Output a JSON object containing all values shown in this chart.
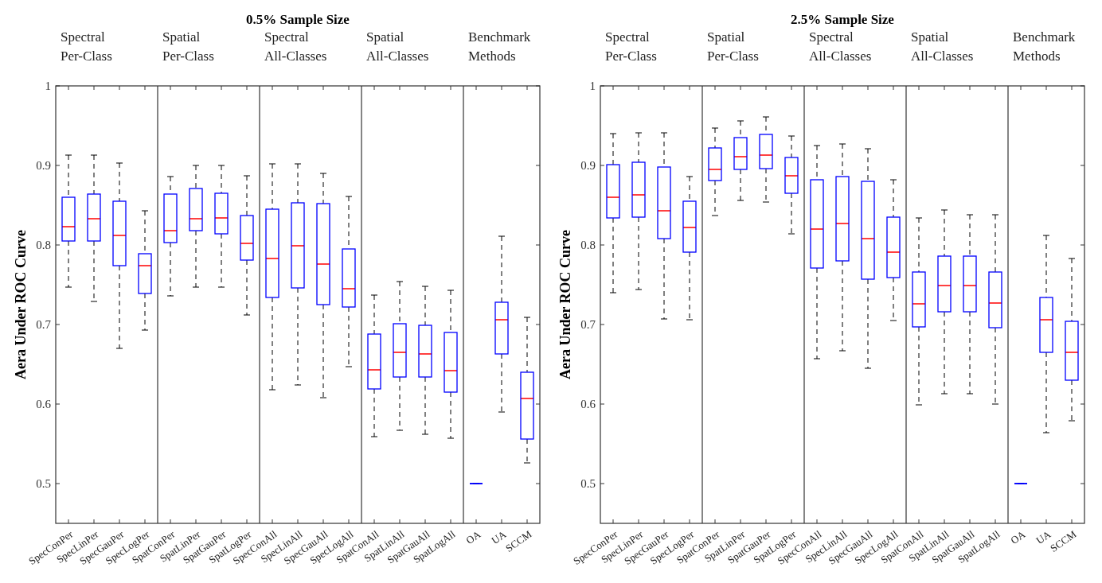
{
  "chart_data": [
    {
      "type": "box",
      "title": "0.5% Sample Size",
      "ylabel": "Aera Under ROC Curve",
      "categories": [
        "SpecConPer",
        "SpecLinPer",
        "SpecGauPer",
        "SpecLogPer",
        "SpatConPer",
        "SpatLinPer",
        "SpatGauPer",
        "SpatLogPer",
        "SpecConAll",
        "SpecLinAll",
        "SpecGauAll",
        "SpecLogAll",
        "SpatConAll",
        "SpatLinAll",
        "SpatGauAll",
        "SpatLogAll",
        "OA",
        "UA",
        "SCCM"
      ],
      "ylim": [
        0.45,
        1
      ],
      "yticks": [
        0.5,
        0.6,
        0.7,
        0.8,
        0.9,
        1
      ],
      "annotations": [
        "Spectral\nPer-Class",
        "Spatial\nPer-Class",
        "Spectral\nAll-Classes",
        "Spatial\nAll-Classes",
        "Benchmark\nMethods"
      ],
      "series": [
        {
          "color": "#0000ff",
          "boxes": [
            {
              "low": 0.747,
              "q1": 0.805,
              "median": 0.823,
              "q3": 0.86,
              "high": 0.913
            },
            {
              "low": 0.729,
              "q1": 0.805,
              "median": 0.833,
              "q3": 0.864,
              "high": 0.913
            },
            {
              "low": 0.67,
              "q1": 0.774,
              "median": 0.812,
              "q3": 0.855,
              "high": 0.903
            },
            {
              "low": 0.693,
              "q1": 0.739,
              "median": 0.774,
              "q3": 0.789,
              "high": 0.843
            },
            {
              "low": 0.736,
              "q1": 0.803,
              "median": 0.818,
              "q3": 0.864,
              "high": 0.886
            },
            {
              "low": 0.747,
              "q1": 0.818,
              "median": 0.833,
              "q3": 0.871,
              "high": 0.9
            },
            {
              "low": 0.747,
              "q1": 0.814,
              "median": 0.834,
              "q3": 0.865,
              "high": 0.9
            },
            {
              "low": 0.712,
              "q1": 0.781,
              "median": 0.802,
              "q3": 0.837,
              "high": 0.887
            },
            {
              "low": 0.618,
              "q1": 0.734,
              "median": 0.783,
              "q3": 0.845,
              "high": 0.902
            },
            {
              "low": 0.624,
              "q1": 0.746,
              "median": 0.799,
              "q3": 0.853,
              "high": 0.902
            },
            {
              "low": 0.608,
              "q1": 0.725,
              "median": 0.776,
              "q3": 0.852,
              "high": 0.89
            },
            {
              "low": 0.647,
              "q1": 0.722,
              "median": 0.745,
              "q3": 0.795,
              "high": 0.861
            },
            {
              "low": 0.559,
              "q1": 0.619,
              "median": 0.643,
              "q3": 0.688,
              "high": 0.737
            },
            {
              "low": 0.567,
              "q1": 0.634,
              "median": 0.665,
              "q3": 0.701,
              "high": 0.754
            },
            {
              "low": 0.562,
              "q1": 0.634,
              "median": 0.663,
              "q3": 0.699,
              "high": 0.748
            },
            {
              "low": 0.557,
              "q1": 0.615,
              "median": 0.642,
              "q3": 0.69,
              "high": 0.743
            },
            {
              "low": 0.5,
              "q1": 0.5,
              "median": 0.5,
              "q3": 0.5,
              "high": 0.5
            },
            {
              "low": 0.59,
              "q1": 0.663,
              "median": 0.706,
              "q3": 0.728,
              "high": 0.811
            },
            {
              "low": 0.526,
              "q1": 0.556,
              "median": 0.607,
              "q3": 0.64,
              "high": 0.709
            }
          ]
        }
      ]
    },
    {
      "type": "box",
      "title": "2.5% Sample Size",
      "ylabel": "Aera Under ROC Curve",
      "categories": [
        "SpecConPer",
        "SpecLinPer",
        "SpecGauPer",
        "SpecLogPer",
        "SpatConPer",
        "SpatLinPer",
        "SpatGauPer",
        "SpatLogPer",
        "SpecConAll",
        "SpecLinAll",
        "SpecGauAll",
        "SpecLogAll",
        "SpatConAll",
        "SpatLinAll",
        "SpatGauAll",
        "SpatLogAll",
        "OA",
        "UA",
        "SCCM"
      ],
      "ylim": [
        0.45,
        1
      ],
      "yticks": [
        0.5,
        0.6,
        0.7,
        0.8,
        0.9,
        1
      ],
      "annotations": [
        "Spectral\nPer-Class",
        "Spatial\nPer-Class",
        "Spectral\nAll-Classes",
        "Spatial\nAll-Classes",
        "Benchmark\nMethods"
      ],
      "series": [
        {
          "color": "#0000ff",
          "boxes": [
            {
              "low": 0.74,
              "q1": 0.834,
              "median": 0.86,
              "q3": 0.901,
              "high": 0.94
            },
            {
              "low": 0.744,
              "q1": 0.835,
              "median": 0.863,
              "q3": 0.904,
              "high": 0.941
            },
            {
              "low": 0.707,
              "q1": 0.808,
              "median": 0.843,
              "q3": 0.898,
              "high": 0.941
            },
            {
              "low": 0.706,
              "q1": 0.791,
              "median": 0.822,
              "q3": 0.855,
              "high": 0.886
            },
            {
              "low": 0.837,
              "q1": 0.881,
              "median": 0.895,
              "q3": 0.922,
              "high": 0.947
            },
            {
              "low": 0.856,
              "q1": 0.895,
              "median": 0.911,
              "q3": 0.935,
              "high": 0.956
            },
            {
              "low": 0.854,
              "q1": 0.896,
              "median": 0.913,
              "q3": 0.939,
              "high": 0.961
            },
            {
              "low": 0.814,
              "q1": 0.865,
              "median": 0.887,
              "q3": 0.91,
              "high": 0.937
            },
            {
              "low": 0.657,
              "q1": 0.771,
              "median": 0.82,
              "q3": 0.882,
              "high": 0.925
            },
            {
              "low": 0.667,
              "q1": 0.78,
              "median": 0.827,
              "q3": 0.886,
              "high": 0.927
            },
            {
              "low": 0.645,
              "q1": 0.757,
              "median": 0.808,
              "q3": 0.88,
              "high": 0.921
            },
            {
              "low": 0.705,
              "q1": 0.759,
              "median": 0.791,
              "q3": 0.835,
              "high": 0.882
            },
            {
              "low": 0.599,
              "q1": 0.697,
              "median": 0.726,
              "q3": 0.766,
              "high": 0.834
            },
            {
              "low": 0.613,
              "q1": 0.716,
              "median": 0.749,
              "q3": 0.786,
              "high": 0.844
            },
            {
              "low": 0.613,
              "q1": 0.716,
              "median": 0.749,
              "q3": 0.786,
              "high": 0.838
            },
            {
              "low": 0.6,
              "q1": 0.696,
              "median": 0.727,
              "q3": 0.766,
              "high": 0.838
            },
            {
              "low": 0.5,
              "q1": 0.5,
              "median": 0.5,
              "q3": 0.5,
              "high": 0.5
            },
            {
              "low": 0.564,
              "q1": 0.665,
              "median": 0.706,
              "q3": 0.734,
              "high": 0.812
            },
            {
              "low": 0.579,
              "q1": 0.63,
              "median": 0.665,
              "q3": 0.704,
              "high": 0.783
            }
          ]
        }
      ]
    }
  ]
}
